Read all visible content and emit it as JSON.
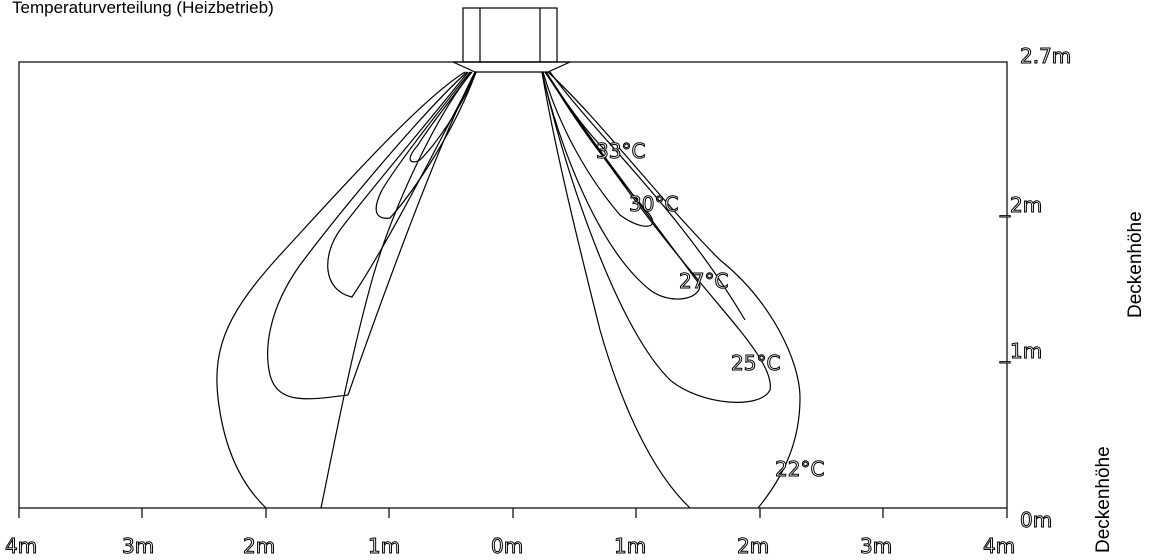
{
  "title": "Temperaturverteilung (Heizbetrieb)",
  "x_tick_labels": [
    "4m",
    "3m",
    "2m",
    "1m",
    "0m",
    "1m",
    "2m",
    "3m",
    "4m"
  ],
  "y_tick_labels": [
    "0m",
    "_1m",
    "_2m",
    "2.7m"
  ],
  "side_label_top": "Deckenhöhe",
  "side_label_bottom": "Deckenhöhe",
  "isotherm_labels": [
    "33°C",
    "30°C",
    "27°C",
    "25°C",
    "22°C"
  ]
}
